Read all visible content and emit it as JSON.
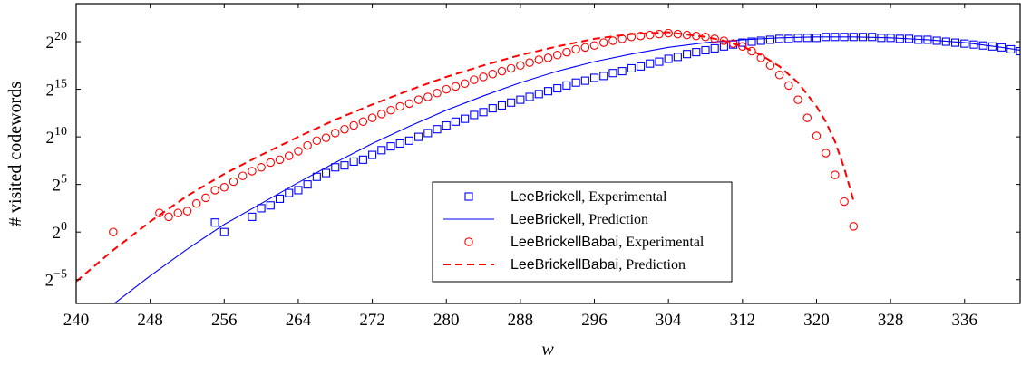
{
  "chart_data": {
    "type": "scatter",
    "xlabel": "w",
    "ylabel": "# visited codewords",
    "xlim": [
      240,
      342
    ],
    "ylim": [
      -7.5,
      24
    ],
    "y_scale": "log2",
    "x_ticks": [
      240,
      248,
      256,
      264,
      272,
      280,
      288,
      296,
      304,
      312,
      320,
      328,
      336
    ],
    "y_ticks": [
      {
        "value": -5,
        "base": "2",
        "exp": "−5"
      },
      {
        "value": 0,
        "base": "2",
        "exp": "0"
      },
      {
        "value": 5,
        "base": "2",
        "exp": "5"
      },
      {
        "value": 10,
        "base": "2",
        "exp": "10"
      },
      {
        "value": 15,
        "base": "2",
        "exp": "15"
      },
      {
        "value": 20,
        "base": "2",
        "exp": "20"
      }
    ],
    "grid": false,
    "legend_position": "bottom-center",
    "series": [
      {
        "name": "LeeBrickell",
        "name_suffix": ", Experimental",
        "kind": "experimental",
        "marker": "square",
        "color": "#0000ff",
        "x": [
          255,
          256,
          259,
          260,
          261,
          262,
          263,
          264,
          265,
          266,
          267,
          268,
          269,
          270,
          271,
          272,
          273,
          274,
          275,
          276,
          277,
          278,
          279,
          280,
          281,
          282,
          283,
          284,
          285,
          286,
          287,
          288,
          289,
          290,
          291,
          292,
          293,
          294,
          295,
          296,
          297,
          298,
          299,
          300,
          301,
          302,
          303,
          304,
          305,
          306,
          307,
          308,
          309,
          310,
          311,
          312,
          313,
          314,
          315,
          316,
          317,
          318,
          319,
          320,
          321,
          322,
          323,
          324,
          325,
          326,
          327,
          328,
          329,
          330,
          331,
          332,
          333,
          334,
          335,
          336,
          337,
          338,
          339,
          340,
          341,
          342
        ],
        "y": [
          1.0,
          0.0,
          1.6,
          2.5,
          2.8,
          3.5,
          4.1,
          4.4,
          5.0,
          5.8,
          6.2,
          6.8,
          7.0,
          7.4,
          7.6,
          8.1,
          8.6,
          9.0,
          9.3,
          9.6,
          10.0,
          10.4,
          10.8,
          11.2,
          11.6,
          11.9,
          12.3,
          12.6,
          13.0,
          13.3,
          13.6,
          13.9,
          14.2,
          14.5,
          14.8,
          15.1,
          15.4,
          15.7,
          15.9,
          16.2,
          16.4,
          16.7,
          16.9,
          17.2,
          17.4,
          17.7,
          17.9,
          18.2,
          18.4,
          18.7,
          18.9,
          19.1,
          19.3,
          19.5,
          19.7,
          19.9,
          20.0,
          20.1,
          20.2,
          20.3,
          20.3,
          20.4,
          20.4,
          20.4,
          20.5,
          20.5,
          20.5,
          20.5,
          20.5,
          20.5,
          20.4,
          20.4,
          20.3,
          20.3,
          20.2,
          20.2,
          20.1,
          20.0,
          19.9,
          19.8,
          19.7,
          19.6,
          19.5,
          19.4,
          19.2,
          19.0
        ]
      },
      {
        "name": "LeeBrickell",
        "name_suffix": ", Prediction",
        "kind": "prediction",
        "line_style": "solid",
        "color": "#0000ff",
        "x": [
          244,
          248,
          252,
          256,
          260,
          264,
          268,
          272,
          276,
          280,
          284,
          288,
          292,
          296,
          300,
          304,
          308,
          312,
          316,
          320,
          324,
          328,
          332,
          336,
          340,
          342
        ],
        "y": [
          -7.6,
          -4.6,
          -1.8,
          0.8,
          3.0,
          5.2,
          7.3,
          9.3,
          11.1,
          12.8,
          14.3,
          15.7,
          16.9,
          17.9,
          18.7,
          19.4,
          19.9,
          20.2,
          20.4,
          20.5,
          20.5,
          20.4,
          20.2,
          19.9,
          19.4,
          19.1
        ]
      },
      {
        "name": "LeeBrickellBabai",
        "name_suffix": ", Experimental",
        "kind": "experimental",
        "marker": "circle",
        "color": "#ff0000",
        "x": [
          244,
          249,
          250,
          251,
          252,
          253,
          254,
          255,
          256,
          257,
          258,
          259,
          260,
          261,
          262,
          263,
          264,
          265,
          266,
          267,
          268,
          269,
          270,
          271,
          272,
          273,
          274,
          275,
          276,
          277,
          278,
          279,
          280,
          281,
          282,
          283,
          284,
          285,
          286,
          287,
          288,
          289,
          290,
          291,
          292,
          293,
          294,
          295,
          296,
          297,
          298,
          299,
          300,
          301,
          302,
          303,
          304,
          305,
          306,
          307,
          308,
          309,
          310,
          311,
          312,
          313,
          314,
          315,
          316,
          317,
          318,
          319,
          320,
          321,
          322,
          323,
          324
        ],
        "y": [
          0.0,
          2.0,
          1.6,
          2.0,
          2.2,
          3.0,
          3.6,
          4.4,
          4.7,
          5.3,
          5.9,
          6.4,
          6.8,
          7.3,
          7.6,
          8.0,
          8.5,
          9.1,
          9.6,
          9.9,
          10.4,
          10.8,
          11.2,
          11.6,
          12.0,
          12.4,
          12.8,
          13.2,
          13.5,
          13.9,
          14.2,
          14.6,
          15.0,
          15.3,
          15.6,
          16.0,
          16.3,
          16.6,
          16.9,
          17.2,
          17.5,
          17.8,
          18.1,
          18.3,
          18.6,
          18.9,
          19.2,
          19.4,
          19.6,
          19.9,
          20.1,
          20.3,
          20.5,
          20.6,
          20.7,
          20.8,
          20.9,
          20.8,
          20.7,
          20.6,
          20.5,
          20.3,
          20.1,
          19.8,
          19.5,
          19.0,
          18.3,
          17.5,
          16.5,
          15.4,
          13.9,
          12.0,
          10.1,
          8.3,
          6.0,
          3.2,
          0.6
        ]
      },
      {
        "name": "LeeBrickellBabai",
        "name_suffix": ", Prediction",
        "kind": "prediction",
        "line_style": "dashed",
        "color": "#ff0000",
        "x": [
          240,
          244,
          248,
          252,
          256,
          260,
          264,
          268,
          272,
          276,
          280,
          284,
          288,
          292,
          296,
          300,
          304,
          308,
          310,
          312,
          314,
          316,
          318,
          320,
          321,
          322,
          323,
          324
        ],
        "y": [
          -5.2,
          -1.9,
          1.1,
          3.8,
          6.1,
          8.1,
          10.0,
          11.8,
          13.4,
          14.9,
          16.3,
          17.5,
          18.6,
          19.5,
          20.3,
          20.8,
          21.0,
          20.5,
          20.1,
          19.5,
          18.6,
          17.4,
          15.7,
          13.2,
          11.6,
          9.5,
          6.7,
          3.3
        ]
      }
    ]
  }
}
